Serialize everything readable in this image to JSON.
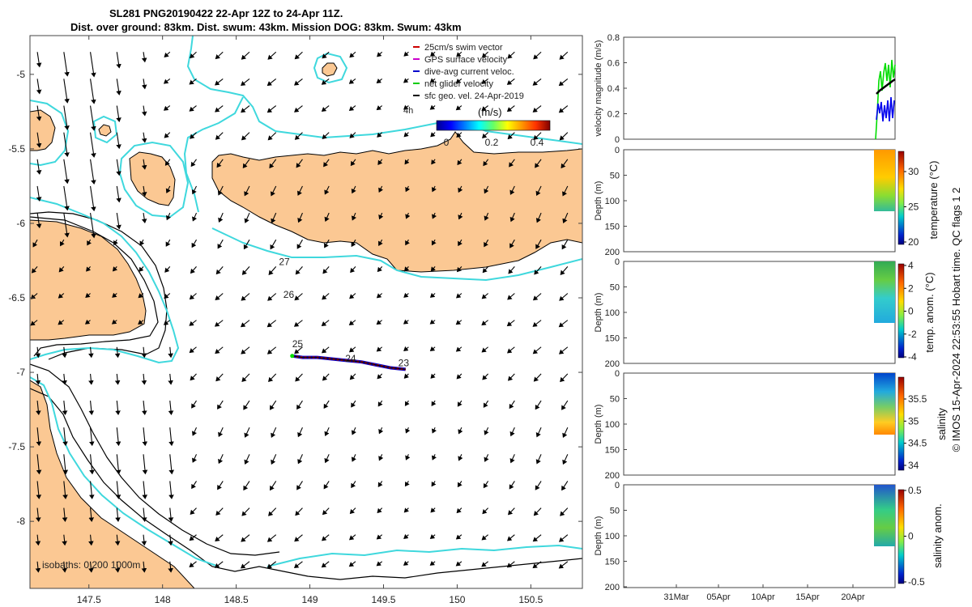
{
  "title": {
    "line1": "SL281 PNG20190422 22-Apr 12Z to 24-Apr 11Z.",
    "line2": "Dist. over ground: 83km. Dist. swum: 43km. Mission DOG: 83km. Swum: 43km"
  },
  "map": {
    "lon_ticks": [
      "147.5",
      "148",
      "148.5",
      "149",
      "149.5",
      "150",
      "150.5"
    ],
    "lat_ticks": [
      "-5",
      "-5.5",
      "-6",
      "-6.5",
      "-7",
      "-7.5",
      "-8"
    ],
    "lon_range": [
      147.1,
      150.85
    ],
    "lat_range": [
      -8.45,
      -4.74
    ],
    "isobath_label": "isobaths: 0   200  1000m",
    "legend": [
      {
        "label": "25cm/s swim vector",
        "color": "#cc0000"
      },
      {
        "label": "GPS surface velocity",
        "color": "#cc00cc"
      },
      {
        "label": "dive-avg current veloc.",
        "color": "#0000cc"
      },
      {
        "label": "net glider velocity",
        "color": "#00cc00"
      },
      {
        "label": "sfc geo. vel. 24-Apr-2019",
        "color": "#000000"
      }
    ],
    "legend_extra_text": "4h",
    "colorbar_title": "(m/s)",
    "colorbar_ticks": [
      "0",
      "0.2",
      "0.4"
    ],
    "day_labels": [
      {
        "text": "27",
        "lon": 148.79,
        "lat": -6.28
      },
      {
        "text": "26",
        "lon": 148.82,
        "lat": -6.5
      },
      {
        "text": "25",
        "lon": 148.88,
        "lat": -6.83
      },
      {
        "text": "24",
        "lon": 149.24,
        "lat": -6.93
      },
      {
        "text": "23",
        "lon": 149.6,
        "lat": -6.96
      }
    ],
    "track": [
      [
        148.88,
        -6.89
      ],
      [
        148.95,
        -6.9
      ],
      [
        149.05,
        -6.9
      ],
      [
        149.15,
        -6.91
      ],
      [
        149.25,
        -6.92
      ],
      [
        149.35,
        -6.93
      ],
      [
        149.45,
        -6.95
      ],
      [
        149.55,
        -6.97
      ],
      [
        149.65,
        -6.98
      ]
    ],
    "land_color": "#fbc893",
    "contour_color": "#3fd8dd"
  },
  "panels": {
    "velocity": {
      "ylabel": "velocity magnitude (m/s)",
      "yticks": [
        "0",
        "0.2",
        "0.4",
        "0.6",
        "0.8"
      ]
    },
    "temperature": {
      "ylabel": "Depth (m)",
      "yticks": [
        "0",
        "50",
        "100",
        "150",
        "200"
      ],
      "cb_label": "temperature (°C)",
      "cb_ticks": [
        "30",
        "25",
        "20"
      ]
    },
    "temp_anom": {
      "ylabel": "Depth (m)",
      "yticks": [
        "0",
        "50",
        "100",
        "150",
        "200"
      ],
      "cb_label": "temp. anom. (°C)",
      "cb_ticks": [
        "4",
        "2",
        "0",
        "-2",
        "-4"
      ]
    },
    "salinity": {
      "ylabel": "Depth (m)",
      "yticks": [
        "0",
        "50",
        "100",
        "150",
        "200"
      ],
      "cb_label": "salinity",
      "cb_ticks": [
        "35.5",
        "35",
        "34.5",
        "34"
      ]
    },
    "sal_anom": {
      "ylabel": "Depth (m)",
      "yticks": [
        "0",
        "50",
        "100",
        "150",
        "200"
      ],
      "cb_label": "salinity anom.",
      "cb_ticks": [
        "0.5",
        "0",
        "-0.5"
      ]
    },
    "time_ticks": [
      "31Mar",
      "05Apr",
      "10Apr",
      "15Apr",
      "20Apr"
    ]
  },
  "credit": "© IMOS 15-Apr-2024 22:53:55 Hobart time. QC flags 1  2"
}
